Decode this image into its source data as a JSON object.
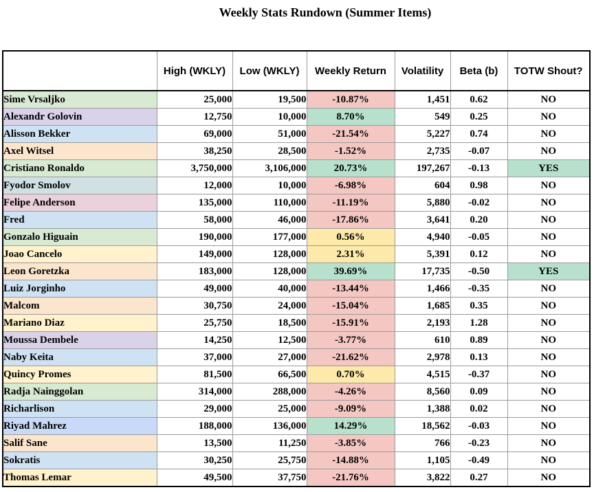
{
  "title": "Weekly Stats Rundown (Summer Items)",
  "columns": [
    "",
    "High (WKLY)",
    "Low (WKLY)",
    "Weekly Return",
    "Volatility",
    "Beta (b)",
    "TOTW Shout?"
  ],
  "colors": {
    "negative_fill": "#f4c7c3",
    "negative_text": "#9c0006",
    "positive_fill": "#b7e1cd",
    "positive_text": "#006100",
    "neutral_fill": "#fde9a9",
    "neutral_text": "#9c6500"
  },
  "rows": [
    {
      "name": "Sime Vrsaljko",
      "high": "25,000",
      "low": "19,500",
      "ret": "-10.87%",
      "tone": "neg",
      "vol": "1,451",
      "beta": "0.62",
      "totw": "NO",
      "color": "#d9ead3"
    },
    {
      "name": "Alexandr Golovin",
      "high": "12,750",
      "low": "10,000",
      "ret": "8.70%",
      "tone": "pos",
      "vol": "549",
      "beta": "0.25",
      "totw": "NO",
      "color": "#d9d2e9"
    },
    {
      "name": "Alisson Bekker",
      "high": "69,000",
      "low": "51,000",
      "ret": "-21.54%",
      "tone": "neg",
      "vol": "5,227",
      "beta": "0.74",
      "totw": "NO",
      "color": "#cfe2f3"
    },
    {
      "name": "Axel Witsel",
      "high": "38,250",
      "low": "28,500",
      "ret": "-1.52%",
      "tone": "neg",
      "vol": "2,735",
      "beta": "-0.07",
      "totw": "NO",
      "color": "#fce5cd"
    },
    {
      "name": "Cristiano Ronaldo",
      "high": "3,750,000",
      "low": "3,106,000",
      "ret": "20.73%",
      "tone": "pos",
      "vol": "197,267",
      "beta": "-0.13",
      "totw": "YES",
      "color": "#d9ead3"
    },
    {
      "name": "Fyodor Smolov",
      "high": "12,000",
      "low": "10,000",
      "ret": "-6.98%",
      "tone": "neg",
      "vol": "604",
      "beta": "0.98",
      "totw": "NO",
      "color": "#d0e0e3"
    },
    {
      "name": "Felipe Anderson",
      "high": "135,000",
      "low": "110,000",
      "ret": "-11.19%",
      "tone": "neg",
      "vol": "5,880",
      "beta": "-0.02",
      "totw": "NO",
      "color": "#ead1dc"
    },
    {
      "name": "Fred",
      "high": "58,000",
      "low": "46,000",
      "ret": "-17.86%",
      "tone": "neg",
      "vol": "3,641",
      "beta": "0.20",
      "totw": "NO",
      "color": "#cfe2f3"
    },
    {
      "name": "Gonzalo Higuain",
      "high": "190,000",
      "low": "177,000",
      "ret": "0.56%",
      "tone": "mid",
      "vol": "4,940",
      "beta": "-0.05",
      "totw": "NO",
      "color": "#d9ead3"
    },
    {
      "name": "Joao Cancelo",
      "high": "149,000",
      "low": "128,000",
      "ret": "2.31%",
      "tone": "mid",
      "vol": "5,391",
      "beta": "0.12",
      "totw": "NO",
      "color": "#fff2cc"
    },
    {
      "name": "Leon Goretzka",
      "high": "183,000",
      "low": "128,000",
      "ret": "39.69%",
      "tone": "pos",
      "vol": "17,735",
      "beta": "-0.50",
      "totw": "YES",
      "color": "#fce5cd"
    },
    {
      "name": "Luiz Jorginho",
      "high": "49,000",
      "low": "40,000",
      "ret": "-13.44%",
      "tone": "neg",
      "vol": "1,466",
      "beta": "-0.35",
      "totw": "NO",
      "color": "#cfe2f3"
    },
    {
      "name": "Malcom",
      "high": "30,750",
      "low": "24,000",
      "ret": "-15.04%",
      "tone": "neg",
      "vol": "1,685",
      "beta": "0.35",
      "totw": "NO",
      "color": "#fce5cd"
    },
    {
      "name": "Mariano Diaz",
      "high": "25,750",
      "low": "18,500",
      "ret": "-15.91%",
      "tone": "neg",
      "vol": "2,193",
      "beta": "1.28",
      "totw": "NO",
      "color": "#fff2cc"
    },
    {
      "name": "Moussa Dembele",
      "high": "14,250",
      "low": "12,500",
      "ret": "-3.77%",
      "tone": "neg",
      "vol": "610",
      "beta": "0.89",
      "totw": "NO",
      "color": "#d9d2e9"
    },
    {
      "name": "Naby Keita",
      "high": "37,000",
      "low": "27,000",
      "ret": "-21.62%",
      "tone": "neg",
      "vol": "2,978",
      "beta": "0.13",
      "totw": "NO",
      "color": "#cfe2f3"
    },
    {
      "name": "Quincy Promes",
      "high": "81,500",
      "low": "66,500",
      "ret": "0.70%",
      "tone": "mid",
      "vol": "4,515",
      "beta": "-0.37",
      "totw": "NO",
      "color": "#fff2cc"
    },
    {
      "name": "Radja Nainggolan",
      "high": "314,000",
      "low": "288,000",
      "ret": "-4.26%",
      "tone": "neg",
      "vol": "8,560",
      "beta": "0.09",
      "totw": "NO",
      "color": "#d9ead3"
    },
    {
      "name": "Richarlison",
      "high": "29,000",
      "low": "25,000",
      "ret": "-9.09%",
      "tone": "neg",
      "vol": "1,388",
      "beta": "0.02",
      "totw": "NO",
      "color": "#cfe2f3"
    },
    {
      "name": "Riyad Mahrez",
      "high": "188,000",
      "low": "136,000",
      "ret": "14.29%",
      "tone": "pos",
      "vol": "18,562",
      "beta": "-0.03",
      "totw": "NO",
      "color": "#c9daf8"
    },
    {
      "name": "Salif Sane",
      "high": "13,500",
      "low": "11,250",
      "ret": "-3.85%",
      "tone": "neg",
      "vol": "766",
      "beta": "-0.23",
      "totw": "NO",
      "color": "#fce5cd"
    },
    {
      "name": "Sokratis",
      "high": "30,250",
      "low": "25,750",
      "ret": "-14.88%",
      "tone": "neg",
      "vol": "1,105",
      "beta": "-0.49",
      "totw": "NO",
      "color": "#cfe2f3"
    },
    {
      "name": "Thomas Lemar",
      "high": "49,500",
      "low": "37,750",
      "ret": "-21.76%",
      "tone": "neg",
      "vol": "3,822",
      "beta": "0.27",
      "totw": "NO",
      "color": "#fff2cc"
    }
  ]
}
